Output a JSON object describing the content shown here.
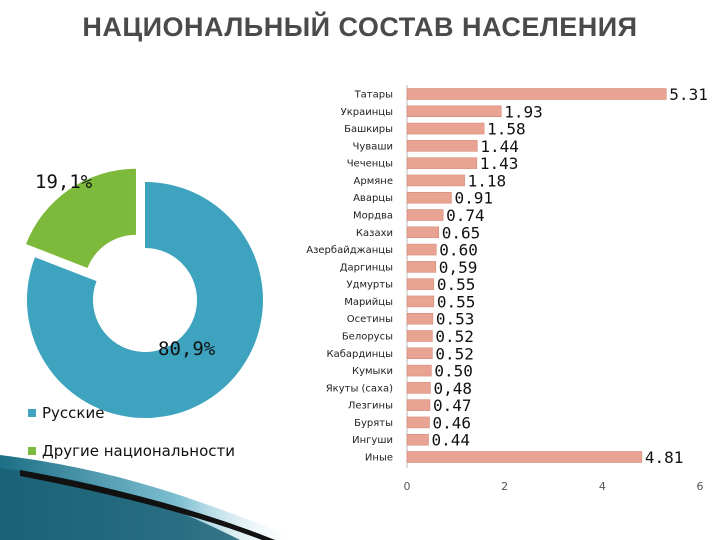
{
  "title": "НАЦИОНАЛЬНЫЙ СОСТАВ НАСЕЛЕНИЯ",
  "colors": {
    "russian": "#3ea3be",
    "other": "#7dba3c",
    "bar": "#e9a392",
    "bar_edge": "#d2826f"
  },
  "chart_data": [
    {
      "type": "pie",
      "style": "donut",
      "slices": [
        {
          "name": "Русские",
          "value": 80.9,
          "label": "80,9%",
          "color": "#3ea3be"
        },
        {
          "name": "Другие национальности",
          "value": 19.1,
          "label": "19,1%",
          "color": "#7dba3c",
          "exploded": true
        }
      ],
      "legend": [
        "Русские",
        "Другие национальности"
      ],
      "legend_position": "bottom-left"
    },
    {
      "type": "bar",
      "orientation": "horizontal",
      "categories": [
        "Татары",
        "Украинцы",
        "Башкиры",
        "Чуваши",
        "Чеченцы",
        "Армяне",
        "Аварцы",
        "Мордва",
        "Казахи",
        "Азербайджанцы",
        "Даргинцы",
        "Удмурты",
        "Марийцы",
        "Осетины",
        "Белорусы",
        "Кабардинцы",
        "Кумыки",
        "Якуты (саха)",
        "Лезгины",
        "Буряты",
        "Ингуши",
        "Иные"
      ],
      "values": [
        5.31,
        1.93,
        1.58,
        1.44,
        1.43,
        1.18,
        0.91,
        0.74,
        0.65,
        0.6,
        0.59,
        0.55,
        0.55,
        0.53,
        0.52,
        0.52,
        0.5,
        0.48,
        0.47,
        0.46,
        0.44,
        4.81
      ],
      "value_labels": [
        "5.31",
        "1.93",
        "1.58",
        "1.44",
        "1.43",
        "1.18",
        "0.91",
        "0.74",
        "0.65",
        "0.60",
        "0,59",
        "0.55",
        "0.55",
        "0.53",
        "0.52",
        "0.52",
        "0.50",
        "0,48",
        "0.47",
        "0.46",
        "0.44",
        "4.81"
      ],
      "xlim": [
        0,
        6
      ],
      "xticks": [
        "0",
        "2",
        "4",
        "6"
      ],
      "grid": false
    }
  ]
}
